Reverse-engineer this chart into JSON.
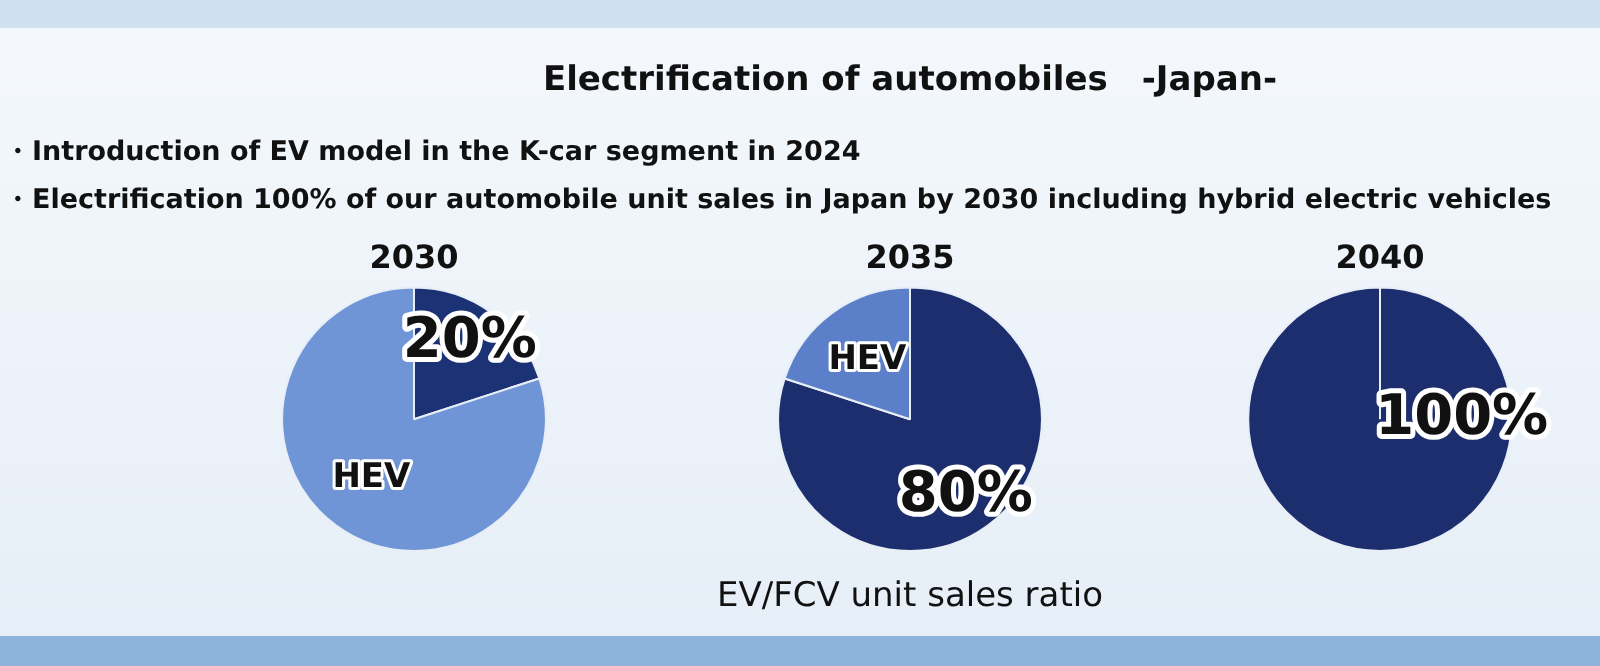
{
  "chart_data": [
    {
      "type": "other",
      "title": "Electrification of automobiles　-Japan-",
      "annotations": [
        "・Introduction of EV model in the K-car segment in 2024",
        "・Electrification 100% of our automobile unit sales in Japan by 2030 including hybrid electric vehicles"
      ]
    },
    {
      "type": "pie",
      "title": "2030",
      "categories": [
        null,
        "HEV"
      ],
      "values": [
        20,
        80
      ],
      "colors": [
        "#1b3275",
        "#6f95d6"
      ],
      "value_labels": [
        "20%",
        null
      ]
    },
    {
      "type": "pie",
      "title": "2035",
      "categories": [
        null,
        "HEV"
      ],
      "values": [
        80,
        20
      ],
      "colors": [
        "#1c2e6e",
        "#5b80c9"
      ],
      "value_labels": [
        "80%",
        null
      ],
      "xlabel": "EV/FCV unit sales ratio"
    },
    {
      "type": "pie",
      "title": "2040",
      "categories": [
        null
      ],
      "values": [
        100
      ],
      "colors": [
        "#1c2e6e"
      ],
      "value_labels": [
        "100%"
      ]
    }
  ]
}
